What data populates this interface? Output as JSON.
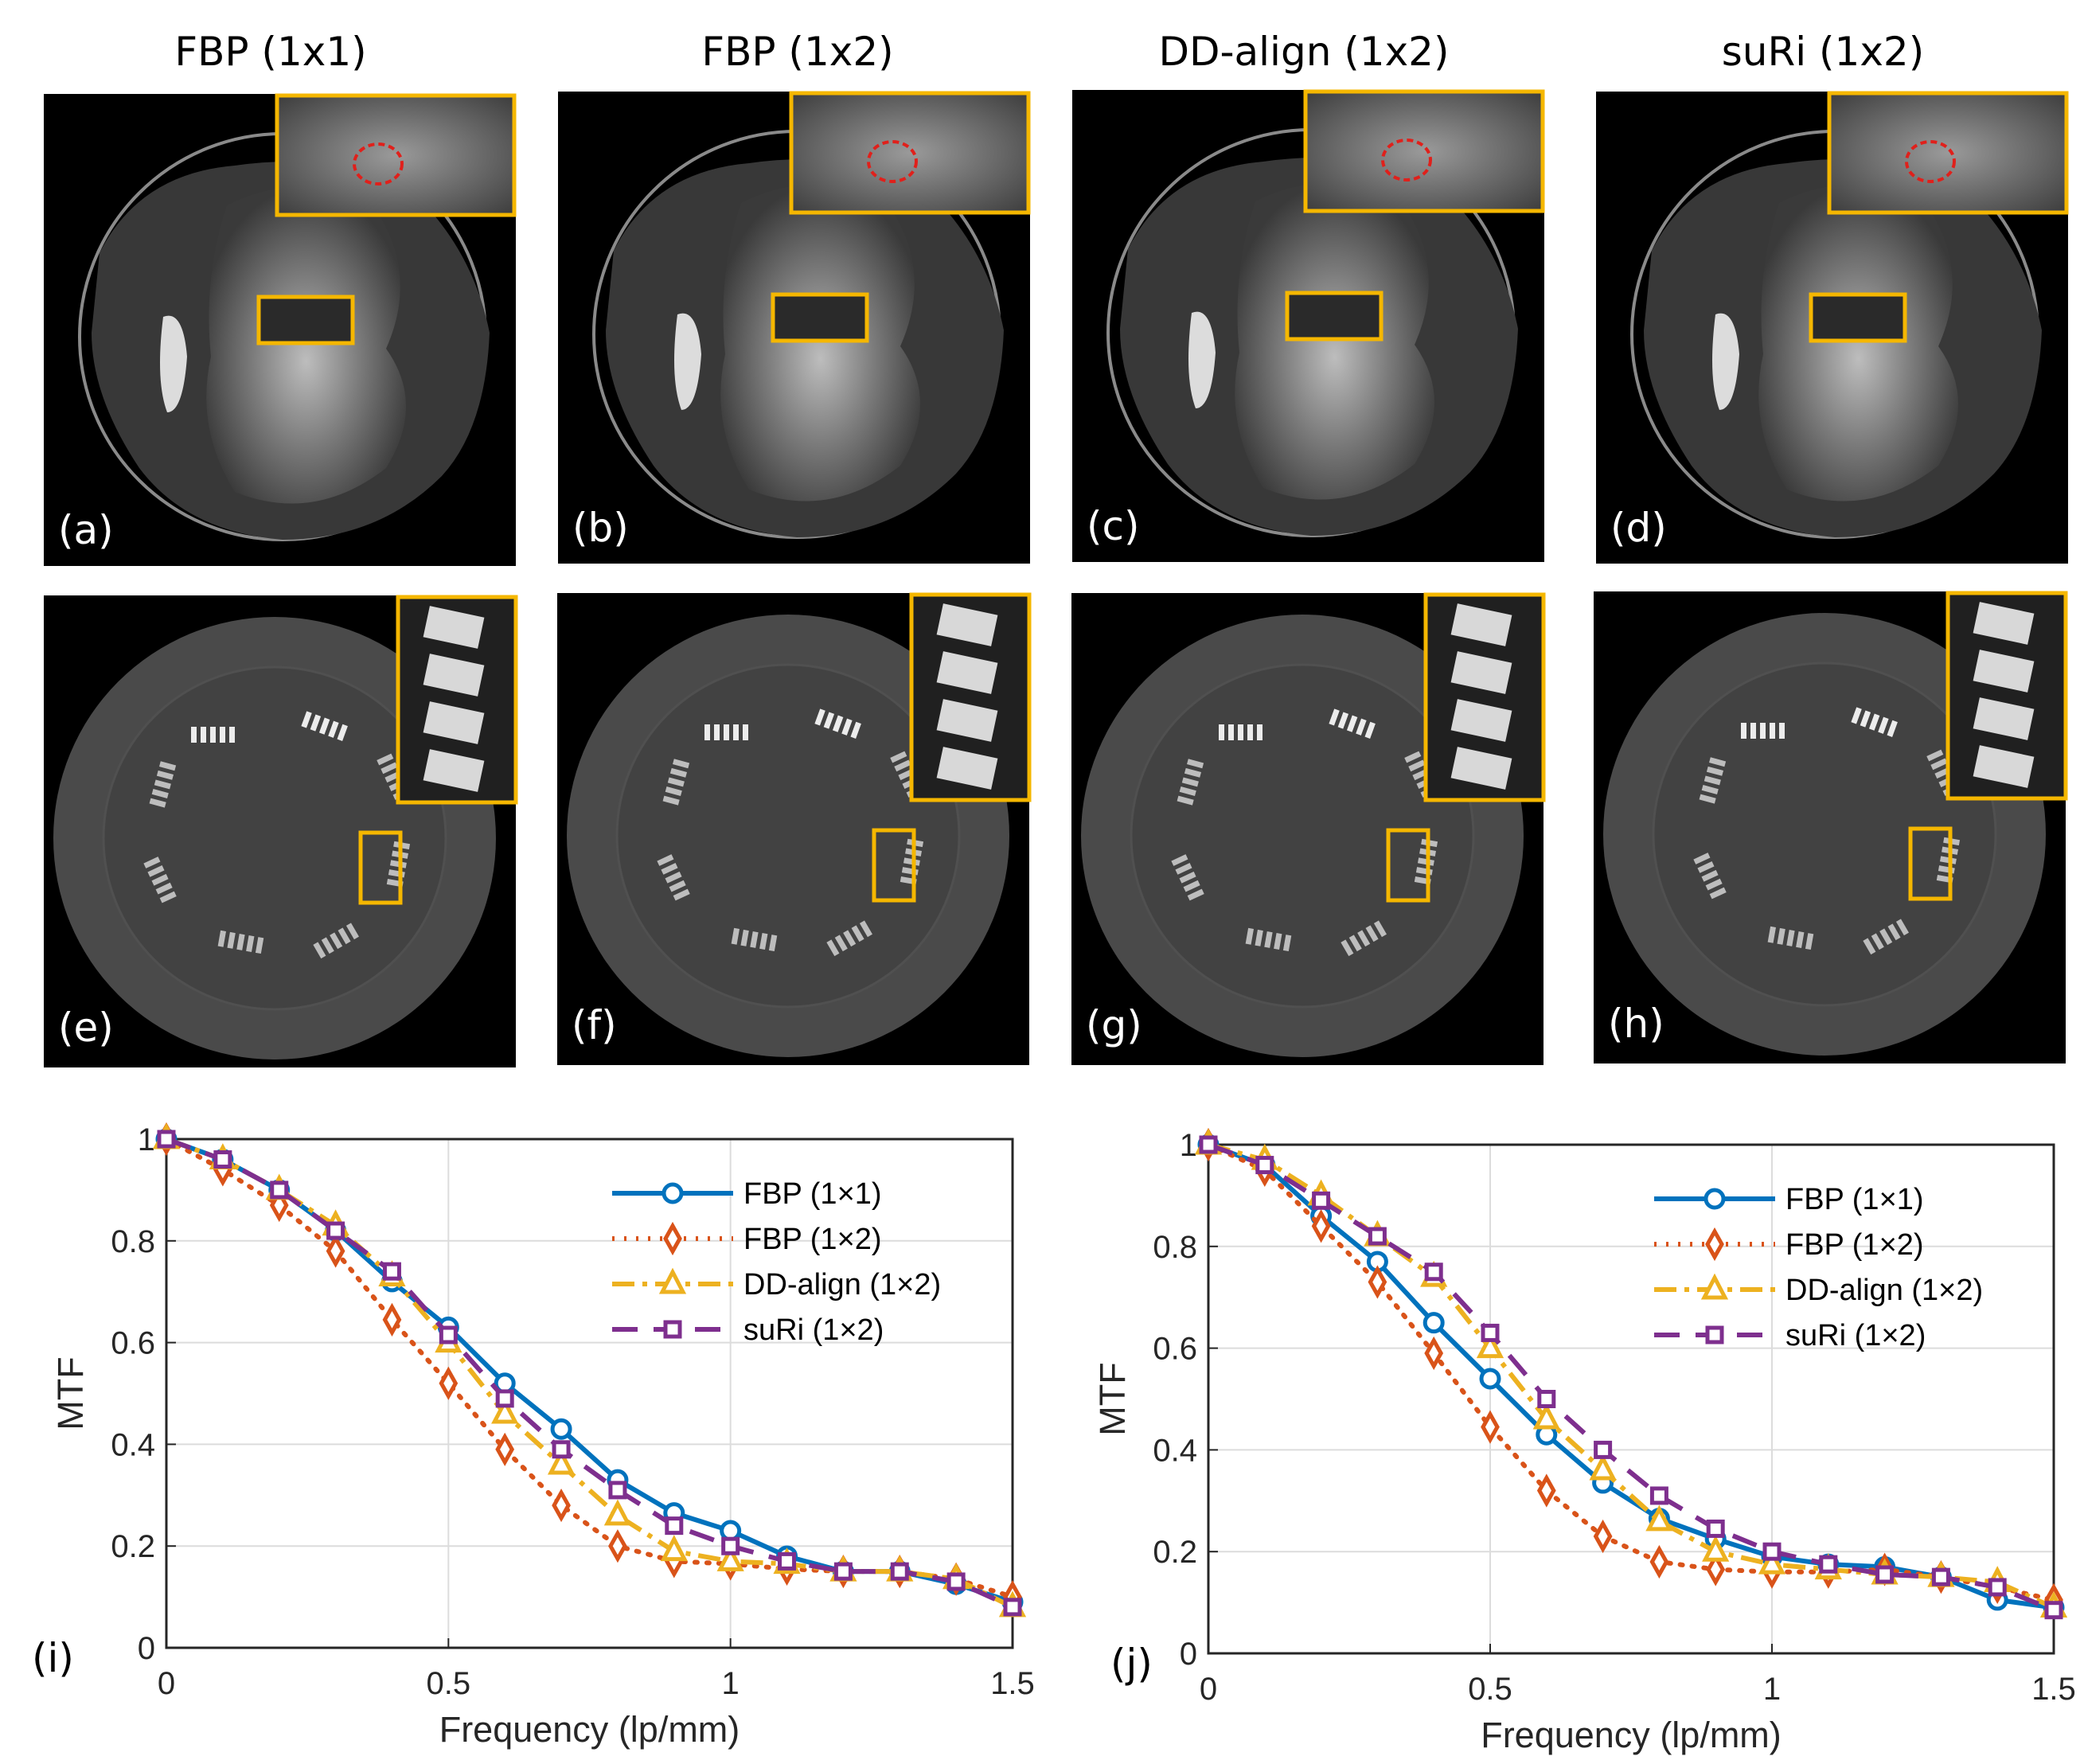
{
  "columns": [
    "FBP (1x1)",
    "FBP (1x2)",
    "DD-align (1x2)",
    "suRi (1x2)"
  ],
  "panel_labels_top": [
    "(a)",
    "(b)",
    "(c)",
    "(d)"
  ],
  "panel_labels_bottom": [
    "(e)",
    "(f)",
    "(g)",
    "(h)"
  ],
  "colors": {
    "inset_border": "#F5B700",
    "roi_circle": "#E0201B"
  },
  "chart_data": [
    {
      "type": "line",
      "panel_label": "(i)",
      "xlabel": "Frequency (lp/mm)",
      "ylabel": "MTF",
      "xlim": [
        0,
        1.5
      ],
      "ylim": [
        0,
        1
      ],
      "xticks": [
        "0",
        "0.5",
        "1",
        "1.5"
      ],
      "yticks": [
        "0",
        "0.2",
        "0.4",
        "0.6",
        "0.8",
        "1"
      ],
      "grid": true,
      "legend_position": "top-right",
      "x": [
        0,
        0.1,
        0.2,
        0.3,
        0.4,
        0.5,
        0.6,
        0.7,
        0.8,
        0.9,
        1.0,
        1.1,
        1.2,
        1.3,
        1.4,
        1.5
      ],
      "series": [
        {
          "name": "FBP (1×1)",
          "color": "#0072BD",
          "line": "solid",
          "marker": "circle",
          "values": [
            1.0,
            0.96,
            0.9,
            0.82,
            0.72,
            0.63,
            0.52,
            0.43,
            0.33,
            0.265,
            0.23,
            0.18,
            0.15,
            0.15,
            0.125,
            0.09
          ]
        },
        {
          "name": "FBP (1×2)",
          "color": "#D95319",
          "line": "dotted",
          "marker": "diamond",
          "values": [
            1.0,
            0.94,
            0.87,
            0.78,
            0.645,
            0.52,
            0.39,
            0.28,
            0.2,
            0.17,
            0.165,
            0.155,
            0.15,
            0.15,
            0.135,
            0.1
          ]
        },
        {
          "name": "DD-align (1×2)",
          "color": "#EDB120",
          "line": "dashdot",
          "marker": "triangle",
          "values": [
            1.0,
            0.96,
            0.9,
            0.83,
            0.73,
            0.6,
            0.46,
            0.36,
            0.26,
            0.19,
            0.17,
            0.165,
            0.15,
            0.15,
            0.135,
            0.08
          ]
        },
        {
          "name": "suRi (1×2)",
          "color": "#7E2F8E",
          "line": "dashed",
          "marker": "square",
          "values": [
            1.0,
            0.96,
            0.9,
            0.82,
            0.74,
            0.615,
            0.49,
            0.39,
            0.31,
            0.24,
            0.2,
            0.17,
            0.15,
            0.15,
            0.13,
            0.08
          ]
        }
      ]
    },
    {
      "type": "line",
      "panel_label": "(j)",
      "xlabel": "Frequency (lp/mm)",
      "ylabel": "MTF",
      "xlim": [
        0,
        1.5
      ],
      "ylim": [
        0,
        1
      ],
      "xticks": [
        "0",
        "0.5",
        "1",
        "1.5"
      ],
      "yticks": [
        "0",
        "0.2",
        "0.4",
        "0.6",
        "0.8",
        "1"
      ],
      "grid": true,
      "legend_position": "top-right",
      "x": [
        0,
        0.1,
        0.2,
        0.3,
        0.4,
        0.5,
        0.6,
        0.7,
        0.8,
        0.9,
        1.0,
        1.1,
        1.2,
        1.3,
        1.4,
        1.5
      ],
      "series": [
        {
          "name": "FBP (1×1)",
          "color": "#0072BD",
          "line": "solid",
          "marker": "circle",
          "values": [
            1.0,
            0.96,
            0.86,
            0.77,
            0.65,
            0.54,
            0.43,
            0.335,
            0.265,
            0.225,
            0.19,
            0.175,
            0.17,
            0.15,
            0.105,
            0.09
          ]
        },
        {
          "name": "FBP (1×2)",
          "color": "#D95319",
          "line": "dotted",
          "marker": "diamond",
          "values": [
            1.0,
            0.95,
            0.84,
            0.73,
            0.59,
            0.445,
            0.32,
            0.23,
            0.18,
            0.165,
            0.16,
            0.16,
            0.165,
            0.15,
            0.13,
            0.105
          ]
        },
        {
          "name": "DD-align (1×2)",
          "color": "#EDB120",
          "line": "dashdot",
          "marker": "triangle",
          "values": [
            1.0,
            0.97,
            0.9,
            0.82,
            0.74,
            0.6,
            0.46,
            0.36,
            0.26,
            0.2,
            0.175,
            0.165,
            0.155,
            0.15,
            0.14,
            0.09
          ]
        },
        {
          "name": "suRi (1×2)",
          "color": "#7E2F8E",
          "line": "dashed",
          "marker": "square",
          "values": [
            1.0,
            0.96,
            0.89,
            0.82,
            0.75,
            0.63,
            0.5,
            0.4,
            0.31,
            0.245,
            0.2,
            0.175,
            0.155,
            0.15,
            0.13,
            0.085
          ]
        }
      ]
    }
  ]
}
